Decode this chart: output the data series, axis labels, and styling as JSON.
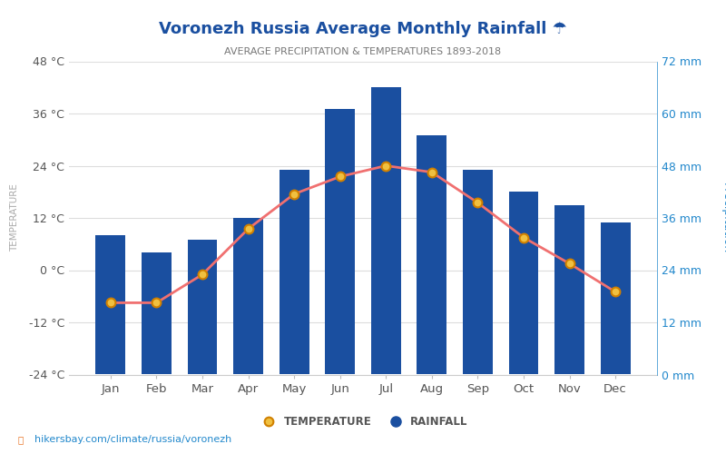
{
  "title": "Voronezh Russia Average Monthly Rainfall ☂",
  "subtitle": "AVERAGE PRECIPITATION & TEMPERATURES 1893-2018",
  "months": [
    "Jan",
    "Feb",
    "Mar",
    "Apr",
    "May",
    "Jun",
    "Jul",
    "Aug",
    "Sep",
    "Oct",
    "Nov",
    "Dec"
  ],
  "rainfall_mm": [
    32,
    28,
    31,
    36,
    47,
    61,
    66,
    55,
    47,
    42,
    39,
    35
  ],
  "temperature_c": [
    -7.5,
    -7.5,
    -1.0,
    9.5,
    17.5,
    21.5,
    24.0,
    22.5,
    15.5,
    7.5,
    1.5,
    -5.0
  ],
  "bar_color": "#1a4fa0",
  "line_color": "#f07070",
  "marker_fill": "#f0c040",
  "marker_edge": "#d08000",
  "title_color": "#1a4fa0",
  "subtitle_color": "#777777",
  "left_axis_color": "#555555",
  "right_axis_color": "#2288cc",
  "temp_ylim": [
    -24,
    48
  ],
  "temp_yticks": [
    -24,
    -12,
    0,
    12,
    24,
    36,
    48
  ],
  "rain_ylim": [
    0,
    72
  ],
  "rain_yticks": [
    0,
    12,
    24,
    36,
    48,
    60,
    72
  ],
  "footer_text": "hikersbay.com/climate/russia/voronezh",
  "legend_temp_label": "TEMPERATURE",
  "legend_rain_label": "RAINFALL",
  "bg_color": "#ffffff"
}
